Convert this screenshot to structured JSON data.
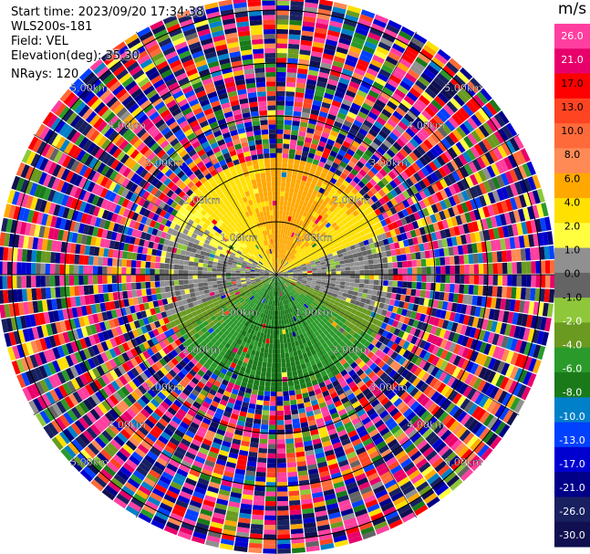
{
  "header": {
    "start_time": "Start time: 2023/09/20 17:34:38",
    "instrument": "WLS200s-181",
    "field": "Field: VEL",
    "elevation": "Elevation(deg): 35.30",
    "nrays": "NRays: 120"
  },
  "colorbar": {
    "unit": "m/s",
    "ticks": [
      "26.0",
      "21.0",
      "17.0",
      "13.0",
      "10.0",
      "8.0",
      "6.0",
      "4.0",
      "2.0",
      "1.0",
      "0.0",
      "-1.0",
      "-2.0",
      "-4.0",
      "-6.0",
      "-8.0",
      "-10.0",
      "-13.0",
      "-17.0",
      "-21.0",
      "-26.0",
      "-30.0"
    ],
    "colors": [
      "#ff3fa0",
      "#e8006a",
      "#ff0000",
      "#ff4422",
      "#ff6a3a",
      "#ff8a55",
      "#ffa800",
      "#ffe000",
      "#ffff40",
      "#909090",
      "#646464",
      "#8ec83a",
      "#6a9a20",
      "#2a9a2a",
      "#1a7a1a",
      "#0080c8",
      "#0040ff",
      "#0000d0",
      "#000088",
      "#182060",
      "#101050"
    ]
  },
  "chart_data": {
    "type": "heatmap",
    "subtype": "ppi-polar",
    "nrays": 120,
    "range_rings_km": [
      1.0,
      2.0,
      3.0,
      4.0,
      5.0
    ],
    "ring_label_format": "{v}km",
    "ring_labels": [
      "1.00km",
      "2.00km",
      "3.00km",
      "4.00km",
      "5.00km"
    ],
    "spokes_deg": [
      0,
      30,
      60,
      90,
      120,
      150,
      180,
      210,
      240,
      270,
      300,
      330
    ],
    "max_range_km": 5.2,
    "velocity_pattern": {
      "inner_north": 4.0,
      "inner_northeast": 5.0,
      "inner_west": 0.0,
      "inner_east": 0.0,
      "inner_south": -5.0,
      "inner_southwest": -2.0,
      "noise_beyond_km": 2.2
    },
    "colorscale": {
      "min": -30.0,
      "max": 26.0
    }
  }
}
